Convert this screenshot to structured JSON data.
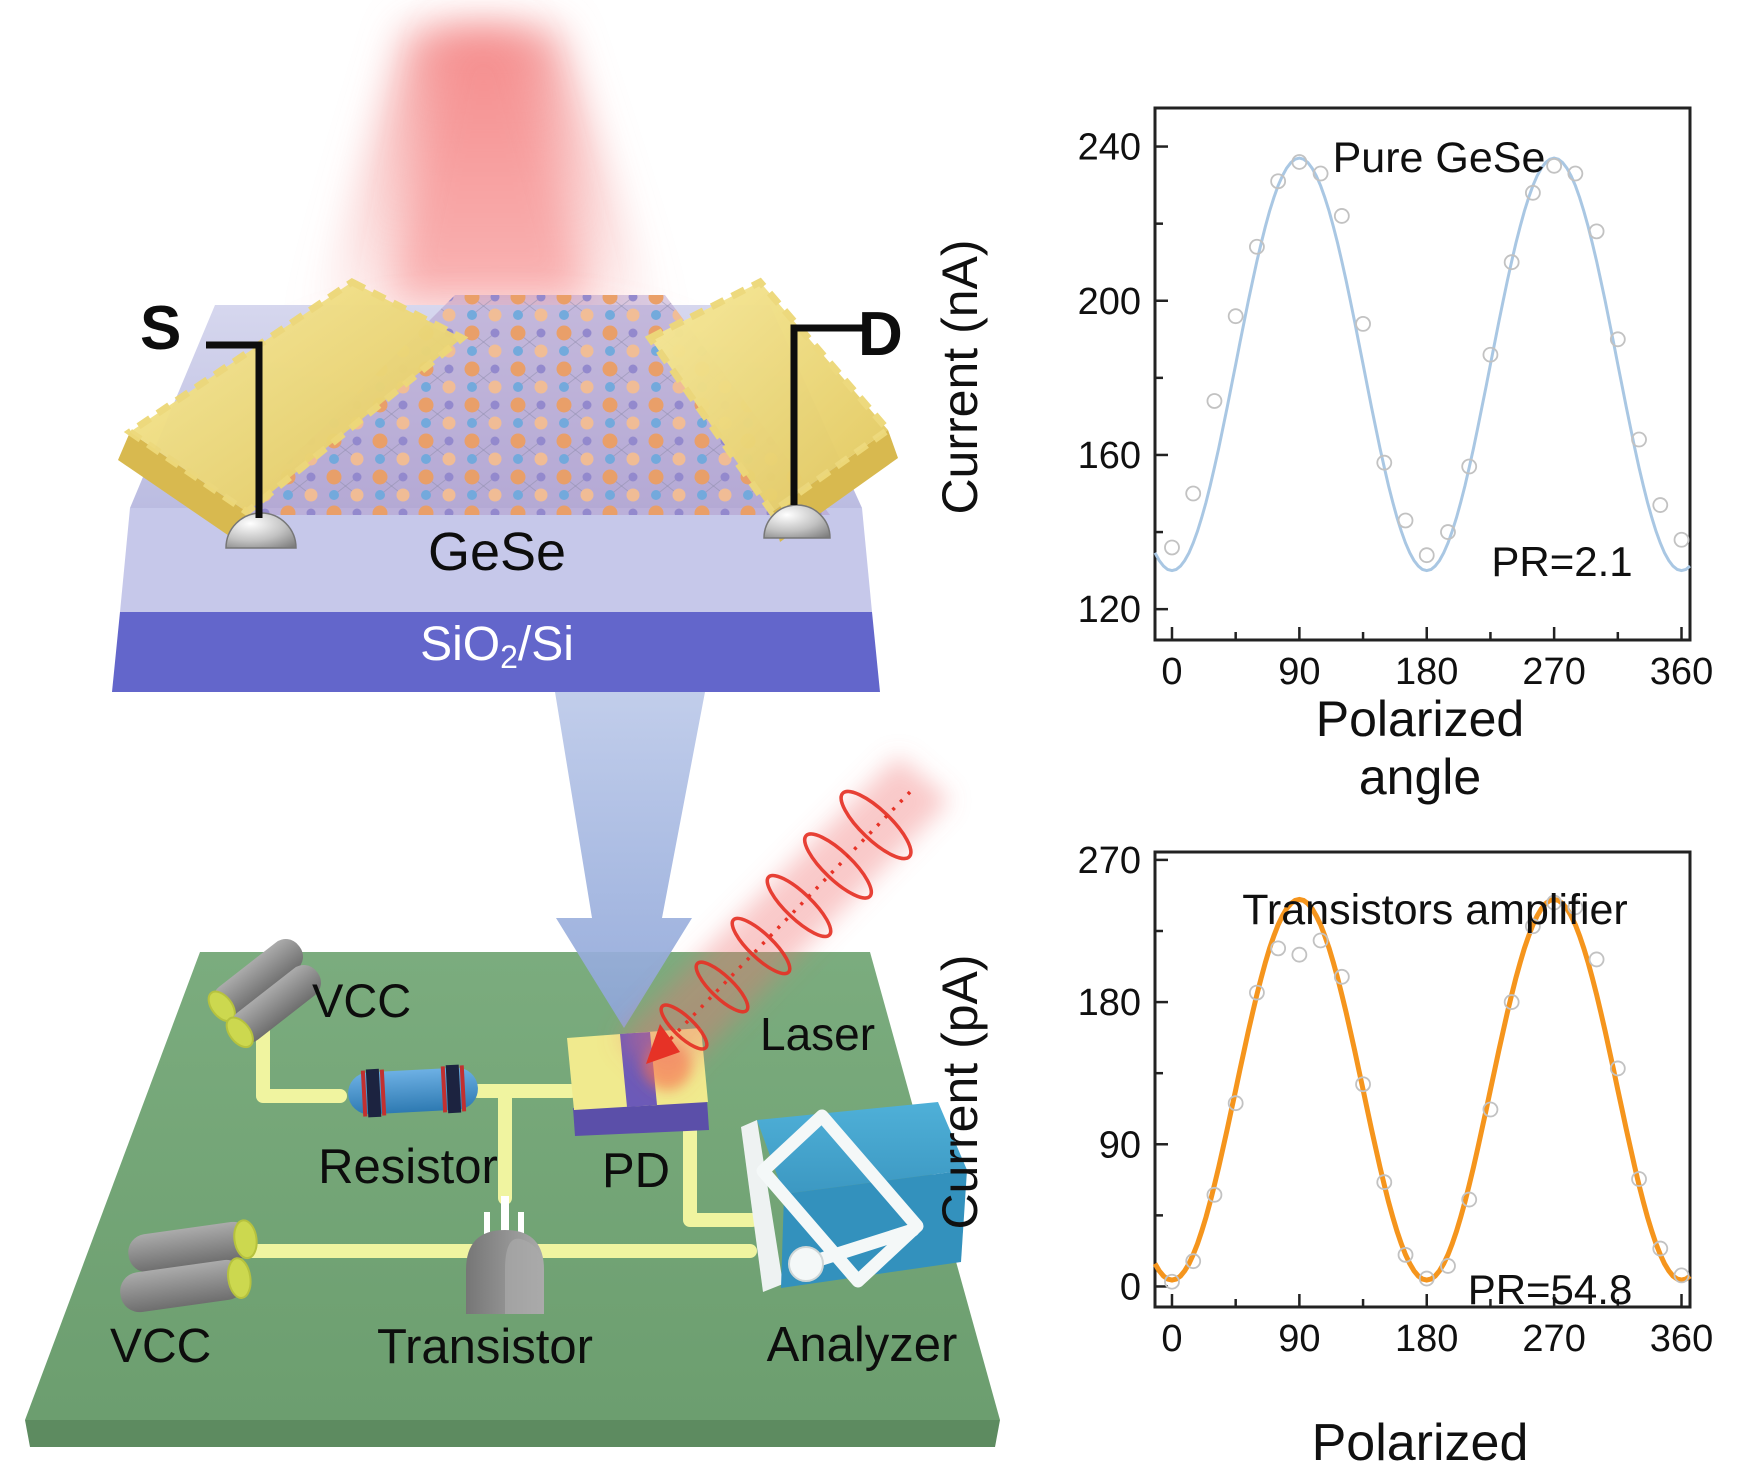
{
  "device_panel": {
    "source_label": "S",
    "drain_label": "D",
    "channel_label": "GeSe",
    "substrate_label": {
      "prefix": "SiO",
      "sub": "2",
      "suffix": "/Si"
    }
  },
  "circuit_panel": {
    "vcc_top_label": "VCC",
    "vcc_bottom_label": "VCC",
    "resistor_label": "Resistor",
    "transistor_label": "Transistor",
    "photodetector_label": "PD",
    "laser_label": "Laser",
    "analyzer_label": "Analyzer"
  },
  "colors": {
    "board_green": "#76a577",
    "wire_yellow": "#f0f4a0",
    "gold_electrode": "#f0e283",
    "gese_slab": "#c6c8ea",
    "sio2_slab": "#6366cb",
    "arrow_blue": "#a9bce2",
    "laser_red": "#e63226",
    "analyzer_blue": "#3a9cc6",
    "resistor_blue": "#3f8fc9",
    "pd_yellow": "#f0ea8e",
    "pd_purple": "#6c5ab8",
    "curve_blue": "#a9c7e3",
    "curve_orange": "#f5951d"
  },
  "chart_data": [
    {
      "type": "scatter",
      "title": "Pure GeSe",
      "xlabel": "Polarized angle",
      "ylabel": "Current (nA)",
      "annotation": "PR=2.1",
      "xlim": [
        -12,
        366
      ],
      "ylim": [
        112,
        250
      ],
      "x_ticks": [
        0,
        90,
        180,
        270,
        360
      ],
      "x_minor_step": 45,
      "y_ticks": [
        120,
        160,
        200,
        240
      ],
      "y_minor_step": 20,
      "grid": false,
      "legend": null,
      "fit_curve": {
        "model": "I = I0 + A*sin^2(theta)",
        "I0": 130,
        "A": 107,
        "color": "#a9c7e3",
        "width": 3
      },
      "scatter": {
        "color": "#c2c2c2",
        "x": [
          0,
          15,
          30,
          45,
          60,
          75,
          90,
          105,
          120,
          135,
          150,
          165,
          180,
          195,
          210,
          225,
          240,
          255,
          270,
          285,
          300,
          315,
          330,
          345,
          360
        ],
        "y": [
          136,
          150,
          174,
          196,
          214,
          231,
          236,
          233,
          222,
          194,
          158,
          143,
          134,
          140,
          157,
          186,
          210,
          228,
          235,
          233,
          218,
          190,
          164,
          147,
          138
        ]
      }
    },
    {
      "type": "scatter",
      "title": "Transistors amplifier",
      "xlabel": "Polarized angle",
      "ylabel": "Current (pA)",
      "annotation": "PR=54.8",
      "xlim": [
        -12,
        366
      ],
      "ylim": [
        -13,
        275
      ],
      "x_ticks": [
        0,
        90,
        180,
        270,
        360
      ],
      "x_minor_step": 45,
      "y_ticks": [
        0,
        90,
        180,
        270
      ],
      "y_minor_step": 45,
      "grid": false,
      "legend": null,
      "fit_curve": {
        "model": "I = I0 + A*sin^2(theta)",
        "I0": 4,
        "A": 241,
        "color": "#f5951d",
        "width": 5
      },
      "scatter": {
        "color": "#c2c2c2",
        "x": [
          0,
          15,
          30,
          45,
          60,
          75,
          90,
          105,
          120,
          135,
          150,
          165,
          180,
          195,
          210,
          225,
          240,
          255,
          270,
          285,
          300,
          315,
          330,
          345,
          360
        ],
        "y": [
          3,
          16,
          58,
          116,
          186,
          214,
          210,
          219,
          196,
          128,
          66,
          20,
          5,
          13,
          55,
          112,
          180,
          228,
          243,
          240,
          207,
          138,
          68,
          24,
          7
        ]
      }
    }
  ]
}
